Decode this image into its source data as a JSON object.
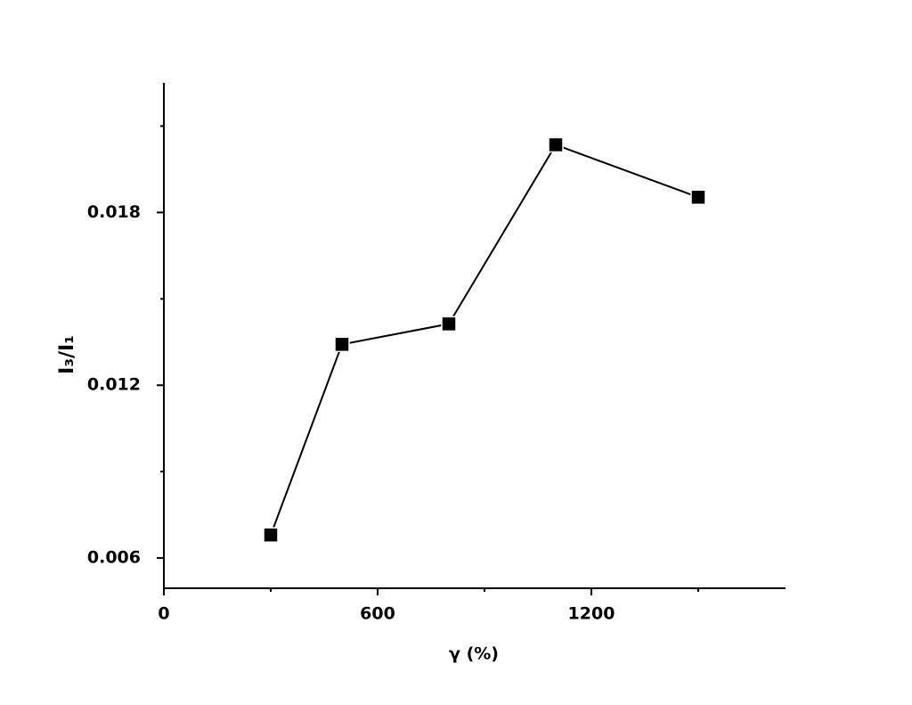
{
  "chart_data": {
    "type": "line",
    "xlabel": "γ (%)",
    "ylabel": "I₃/I₁",
    "x": [
      300,
      500,
      800,
      1100,
      1500
    ],
    "series": [
      {
        "color": "#000000",
        "values": [
          0.0068,
          0.01342,
          0.01413,
          0.02035,
          0.01853
        ]
      }
    ],
    "xlim": [
      0,
      1745
    ],
    "xticks": [
      0,
      600,
      1200
    ],
    "xminorticks": [
      300,
      900,
      1500
    ],
    "ylim": [
      0.00495,
      0.0225
    ],
    "yticks": [
      0.006,
      0.012,
      0.018
    ],
    "yminorticks": [
      0.009,
      0.015,
      0.021
    ],
    "marker": "square",
    "grid": false
  }
}
